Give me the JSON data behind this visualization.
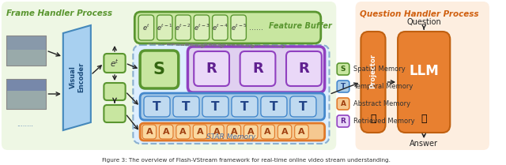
{
  "title_left": "Frame Handler Process",
  "title_right": "Question Handler Process",
  "caption": "Figure 3: The overview of Flash-VStream framework for real-time online video stream understanding.",
  "bg_color": "#ffffff",
  "left_bg": "#eef7e4",
  "right_bg": "#fdeee0",
  "left_title_color": "#5a9630",
  "right_title_color": "#d06010",
  "feature_buffer_bg": "#c8e6a0",
  "feature_buffer_border": "#5a9630",
  "star_memory_bg": "#ddeeff",
  "star_memory_border": "#8ab0d0",
  "spatial_box_bg": "#c8e6a0",
  "spatial_box_border": "#5a9630",
  "temporal_box_bg": "#aacce8",
  "temporal_box_border": "#4488cc",
  "abstract_box_bg": "#f5c890",
  "abstract_box_border": "#e07828",
  "retrieved_outer_bg": "#e0d0f0",
  "retrieved_outer_border": "#9040c0",
  "retrieved_inner_bg": "#ead8f8",
  "retrieved_inner_border": "#9040c0",
  "ve_face_color": "#a8d0f0",
  "ve_edge_color": "#4488bb",
  "et_box_bg": "#c8e6a0",
  "et_box_border": "#5a9630",
  "projector_bg": "#e88030",
  "projector_border": "#c06010",
  "llm_bg": "#e88030",
  "llm_border": "#c06010",
  "arrow_color": "#222222",
  "dashed_arrow_color": "#666666",
  "t_cell_bg": "#aacce8",
  "t_cell_border": "#4488cc",
  "a_cell_bg": "#f5c890",
  "a_cell_border": "#e07828",
  "legend_items": [
    {
      "letter": "S",
      "label": "Spatial Memory",
      "bg": "#c8e6a0",
      "border": "#5a9630",
      "tc": "#336610"
    },
    {
      "letter": "T",
      "label": "Temporal Memory",
      "bg": "#aacce8",
      "border": "#4488cc",
      "tc": "#224488"
    },
    {
      "letter": "A",
      "label": "Abstract Memory",
      "bg": "#f5c890",
      "border": "#e07828",
      "tc": "#a04010"
    },
    {
      "letter": "R",
      "label": "Retrieved Memory",
      "bg": "#ead8f8",
      "border": "#9040c0",
      "tc": "#602090"
    }
  ]
}
